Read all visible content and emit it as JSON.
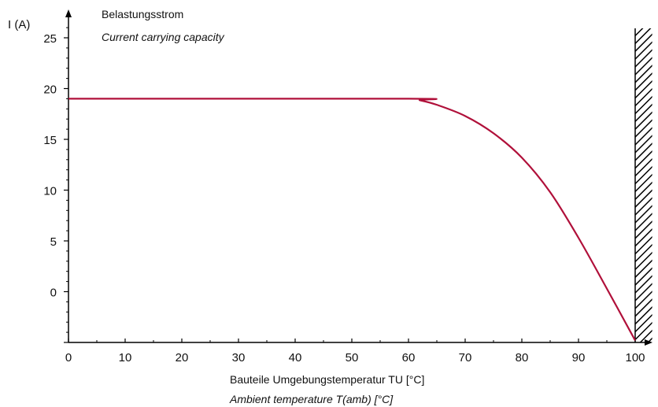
{
  "chart_data": {
    "type": "line",
    "title": "Belastungsstrom",
    "subtitle": "Current carrying capacity",
    "ylabel": "I (A)",
    "xlabel": "Bauteile Umgebungstemperatur TU [°C]",
    "xlabel_en": "Ambient temperature T(amb) [°C]",
    "xlim": [
      0,
      103
    ],
    "ylim": [
      -5,
      27
    ],
    "x_ticks": [
      0,
      10,
      20,
      30,
      40,
      50,
      60,
      70,
      80,
      90,
      100
    ],
    "y_ticks": [
      0,
      5,
      10,
      15,
      20,
      25
    ],
    "series": [
      {
        "color": "#b0103a",
        "x": [
          0,
          60,
          62,
          65,
          70,
          75,
          80,
          85,
          90,
          95,
          100
        ],
        "y": [
          19,
          19,
          18.85,
          18.4,
          17.3,
          15.6,
          13.2,
          9.8,
          5.3,
          0.3,
          -4.8
        ]
      }
    ],
    "limit_region": {
      "from_x": 100,
      "to_x": 103,
      "pattern": "diagonal-hatch"
    },
    "grid": false
  }
}
